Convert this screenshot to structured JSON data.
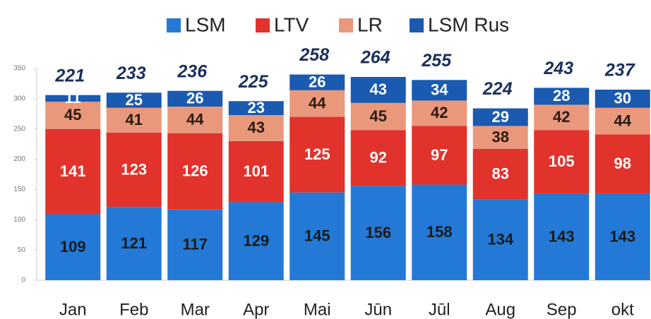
{
  "chart_data": {
    "type": "stacked_bar",
    "categories": [
      "Jan",
      "Feb",
      "Mar",
      "Apr",
      "Mai",
      "Jūn",
      "Jūl",
      "Aug",
      "Sep",
      "okt"
    ],
    "series": [
      {
        "name": "LSM",
        "color": "#2479d6",
        "values": [
          109,
          121,
          117,
          129,
          145,
          156,
          158,
          134,
          143,
          143
        ]
      },
      {
        "name": "LTV",
        "color": "#e2322c",
        "values": [
          141,
          123,
          126,
          101,
          125,
          92,
          97,
          83,
          105,
          98
        ]
      },
      {
        "name": "LR",
        "color": "#e9987c",
        "values": [
          45,
          41,
          44,
          43,
          44,
          45,
          42,
          38,
          42,
          44
        ]
      },
      {
        "name": "LSM Rus",
        "color": "#1a5ab0",
        "values": [
          11,
          25,
          26,
          23,
          26,
          43,
          34,
          29,
          28,
          30
        ]
      }
    ],
    "top_labels": [
      221,
      233,
      236,
      225,
      258,
      264,
      255,
      224,
      243,
      237
    ],
    "ylim": [
      0,
      350
    ],
    "yticks": [
      0,
      50,
      100,
      150,
      200,
      250,
      300,
      350
    ],
    "grid": false
  }
}
